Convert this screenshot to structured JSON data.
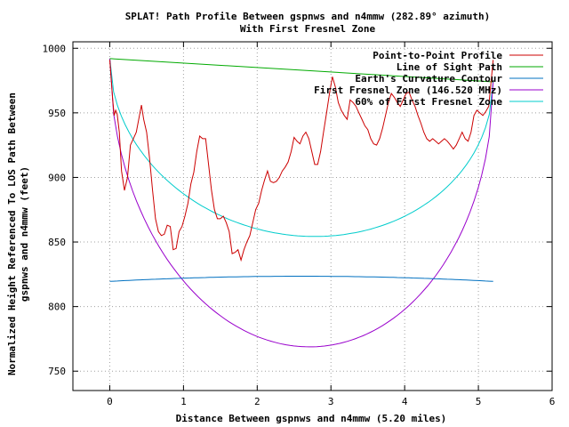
{
  "chart_data": {
    "type": "line",
    "title_line1": "SPLAT! Path Profile Between gspnws and n4mmw (282.89° azimuth)",
    "title_line2": "With First Fresnel Zone",
    "xlabel": "Distance Between gspnws and n4mmw (5.20 miles)",
    "ylabel_line1": "Normalized Height Referenced To LOS Path Between",
    "ylabel_line2": "gspnws and n4mmw (feet)",
    "xlim": [
      -0.5,
      6
    ],
    "ylim": [
      735,
      1005
    ],
    "x_ticks": [
      0,
      1,
      2,
      3,
      4,
      5,
      6
    ],
    "y_ticks": [
      750,
      800,
      850,
      900,
      950,
      1000
    ],
    "grid": true,
    "legend_position": "top-right",
    "series": [
      {
        "name": "Point-to-Point Profile",
        "color": "#cc0000",
        "points": [
          [
            0,
            991
          ],
          [
            0.04,
            960
          ],
          [
            0.06,
            948
          ],
          [
            0.08,
            952
          ],
          [
            0.1,
            949
          ],
          [
            0.13,
            935
          ],
          [
            0.16,
            905
          ],
          [
            0.2,
            890
          ],
          [
            0.24,
            900
          ],
          [
            0.28,
            925
          ],
          [
            0.32,
            930
          ],
          [
            0.36,
            935
          ],
          [
            0.4,
            947
          ],
          [
            0.43,
            956
          ],
          [
            0.46,
            945
          ],
          [
            0.5,
            935
          ],
          [
            0.54,
            915
          ],
          [
            0.58,
            890
          ],
          [
            0.62,
            868
          ],
          [
            0.66,
            858
          ],
          [
            0.7,
            855
          ],
          [
            0.74,
            856
          ],
          [
            0.78,
            863
          ],
          [
            0.82,
            862
          ],
          [
            0.86,
            844
          ],
          [
            0.9,
            845
          ],
          [
            0.94,
            858
          ],
          [
            0.98,
            862
          ],
          [
            1.02,
            870
          ],
          [
            1.06,
            880
          ],
          [
            1.1,
            895
          ],
          [
            1.14,
            904
          ],
          [
            1.18,
            920
          ],
          [
            1.22,
            932
          ],
          [
            1.26,
            930
          ],
          [
            1.3,
            930
          ],
          [
            1.34,
            910
          ],
          [
            1.38,
            890
          ],
          [
            1.42,
            875
          ],
          [
            1.46,
            868
          ],
          [
            1.5,
            868
          ],
          [
            1.54,
            870
          ],
          [
            1.58,
            865
          ],
          [
            1.62,
            858
          ],
          [
            1.66,
            841
          ],
          [
            1.7,
            842
          ],
          [
            1.74,
            844
          ],
          [
            1.78,
            836
          ],
          [
            1.82,
            844
          ],
          [
            1.86,
            850
          ],
          [
            1.9,
            855
          ],
          [
            1.94,
            865
          ],
          [
            1.98,
            875
          ],
          [
            2.02,
            880
          ],
          [
            2.06,
            890
          ],
          [
            2.1,
            898
          ],
          [
            2.14,
            905
          ],
          [
            2.18,
            897
          ],
          [
            2.22,
            896
          ],
          [
            2.26,
            897
          ],
          [
            2.3,
            900
          ],
          [
            2.34,
            905
          ],
          [
            2.38,
            908
          ],
          [
            2.42,
            912
          ],
          [
            2.46,
            920
          ],
          [
            2.5,
            931
          ],
          [
            2.54,
            928
          ],
          [
            2.58,
            926
          ],
          [
            2.62,
            932
          ],
          [
            2.66,
            935
          ],
          [
            2.7,
            930
          ],
          [
            2.74,
            920
          ],
          [
            2.78,
            910
          ],
          [
            2.82,
            910
          ],
          [
            2.86,
            920
          ],
          [
            2.9,
            935
          ],
          [
            2.94,
            950
          ],
          [
            2.98,
            965
          ],
          [
            3.02,
            978
          ],
          [
            3.06,
            970
          ],
          [
            3.1,
            958
          ],
          [
            3.14,
            952
          ],
          [
            3.18,
            948
          ],
          [
            3.22,
            945
          ],
          [
            3.26,
            960
          ],
          [
            3.3,
            958
          ],
          [
            3.34,
            955
          ],
          [
            3.38,
            950
          ],
          [
            3.42,
            945
          ],
          [
            3.46,
            940
          ],
          [
            3.5,
            937
          ],
          [
            3.54,
            930
          ],
          [
            3.58,
            926
          ],
          [
            3.62,
            925
          ],
          [
            3.66,
            930
          ],
          [
            3.7,
            938
          ],
          [
            3.74,
            948
          ],
          [
            3.78,
            958
          ],
          [
            3.82,
            965
          ],
          [
            3.86,
            962
          ],
          [
            3.9,
            958
          ],
          [
            3.94,
            955
          ],
          [
            3.98,
            960
          ],
          [
            4.02,
            965
          ],
          [
            4.06,
            966
          ],
          [
            4.1,
            960
          ],
          [
            4.14,
            955
          ],
          [
            4.18,
            948
          ],
          [
            4.22,
            942
          ],
          [
            4.26,
            935
          ],
          [
            4.3,
            930
          ],
          [
            4.34,
            928
          ],
          [
            4.38,
            930
          ],
          [
            4.42,
            928
          ],
          [
            4.46,
            926
          ],
          [
            4.5,
            928
          ],
          [
            4.54,
            930
          ],
          [
            4.58,
            928
          ],
          [
            4.62,
            925
          ],
          [
            4.66,
            922
          ],
          [
            4.7,
            925
          ],
          [
            4.74,
            930
          ],
          [
            4.78,
            935
          ],
          [
            4.82,
            930
          ],
          [
            4.86,
            928
          ],
          [
            4.9,
            935
          ],
          [
            4.94,
            948
          ],
          [
            4.98,
            952
          ],
          [
            5.02,
            950
          ],
          [
            5.06,
            948
          ],
          [
            5.1,
            951
          ],
          [
            5.14,
            955
          ],
          [
            5.2,
            991
          ]
        ]
      },
      {
        "name": "Line of Sight Path",
        "color": "#00aa00",
        "points": [
          [
            0,
            992
          ],
          [
            5.2,
            974
          ]
        ]
      },
      {
        "name": "Earth's Curvature Contour",
        "color": "#0070c0",
        "curve": "parabola",
        "x_start": 0,
        "x_end": 5.2,
        "y_ends": 819.5,
        "y_mid": 823.5
      },
      {
        "name": "First Fresnel Zone (146.520 MHz)",
        "color": "#9900cc",
        "curve": "fresnel",
        "x_start": 0,
        "x_end": 5.2,
        "y_start": 992,
        "y_end": 974,
        "depth_mid": 214
      },
      {
        "name": "60% of First Fresnel Zone",
        "color": "#00cccc",
        "curve": "fresnel",
        "x_start": 0,
        "x_end": 5.2,
        "y_start": 992,
        "y_end": 974,
        "depth_mid": 128.4
      }
    ]
  }
}
